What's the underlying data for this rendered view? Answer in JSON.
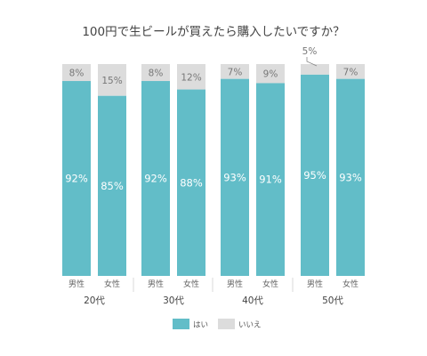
{
  "chart_data": {
    "type": "bar",
    "stacked": true,
    "percent": true,
    "title": "100円で生ビールが買えたら購入したいですか？",
    "categories": [
      {
        "group": "20代",
        "gender": "男性"
      },
      {
        "group": "20代",
        "gender": "女性"
      },
      {
        "group": "30代",
        "gender": "男性"
      },
      {
        "group": "30代",
        "gender": "女性"
      },
      {
        "group": "40代",
        "gender": "男性"
      },
      {
        "group": "40代",
        "gender": "女性"
      },
      {
        "group": "50代",
        "gender": "男性"
      },
      {
        "group": "50代",
        "gender": "女性"
      }
    ],
    "groups": [
      "20代",
      "30代",
      "40代",
      "50代"
    ],
    "series": [
      {
        "name": "はい",
        "color": "#62bdc8",
        "values": [
          92,
          85,
          92,
          88,
          93,
          91,
          95,
          93
        ]
      },
      {
        "name": "いいえ",
        "color": "#dcdcdc",
        "values": [
          8,
          15,
          8,
          12,
          7,
          9,
          5,
          7
        ]
      }
    ],
    "ylim": [
      0,
      100
    ],
    "legend_position": "bottom-center"
  }
}
